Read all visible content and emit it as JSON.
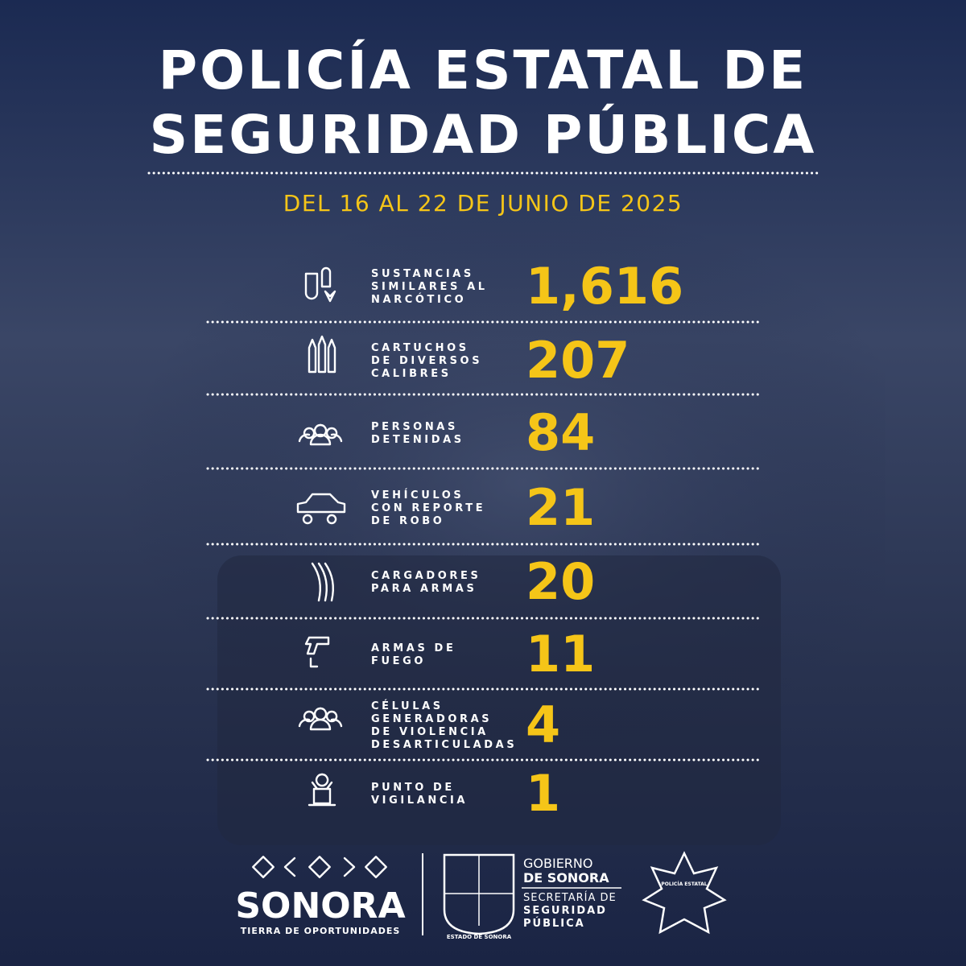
{
  "header": {
    "title_lines": [
      "POLICÍA ESTATAL DE",
      "SEGURIDAD PÚBLICA"
    ],
    "date": "DEL 16 AL 22 DE JUNIO DE 2025"
  },
  "items": [
    {
      "label_lines": [
        "SUSTANCIAS",
        "SIMILARES AL",
        "NARCÓTICO"
      ],
      "value": "1,616"
    },
    {
      "label_lines": [
        "CARTUCHOS",
        "DE DIVERSOS",
        "CALIBRES"
      ],
      "value": "207"
    },
    {
      "label_lines": [
        "PERSONAS",
        "DETENIDAS"
      ],
      "value": "84"
    },
    {
      "label_lines": [
        "VEHÍCULOS",
        "CON REPORTE",
        "DE ROBO"
      ],
      "value": "21"
    },
    {
      "label_lines": [
        "CARGADORES",
        "PARA ARMAS"
      ],
      "value": "20"
    },
    {
      "label_lines": [
        "ARMAS DE",
        "FUEGO"
      ],
      "value": "11"
    },
    {
      "label_lines": [
        "CÉLULAS",
        "GENERADORAS",
        "DE VIOLENCIA",
        "DESARTICULADAS"
      ],
      "value": "4"
    },
    {
      "label_lines": [
        "PUNTO DE",
        "VIGILANCIA"
      ],
      "value": "1"
    }
  ],
  "footer": {
    "sonora": "SONORA",
    "tagline": "TIERRA DE OPORTUNIDADES",
    "shield_caption": "ESTADO DE SONORA",
    "gobierno": "GOBIERNO",
    "de_sonora": "DE SONORA",
    "secretaria": "SECRETARÍA DE",
    "seguridad": "SEGURIDAD",
    "publica": "PÚBLICA",
    "badge": "POLICÍA ESTATAL"
  }
}
